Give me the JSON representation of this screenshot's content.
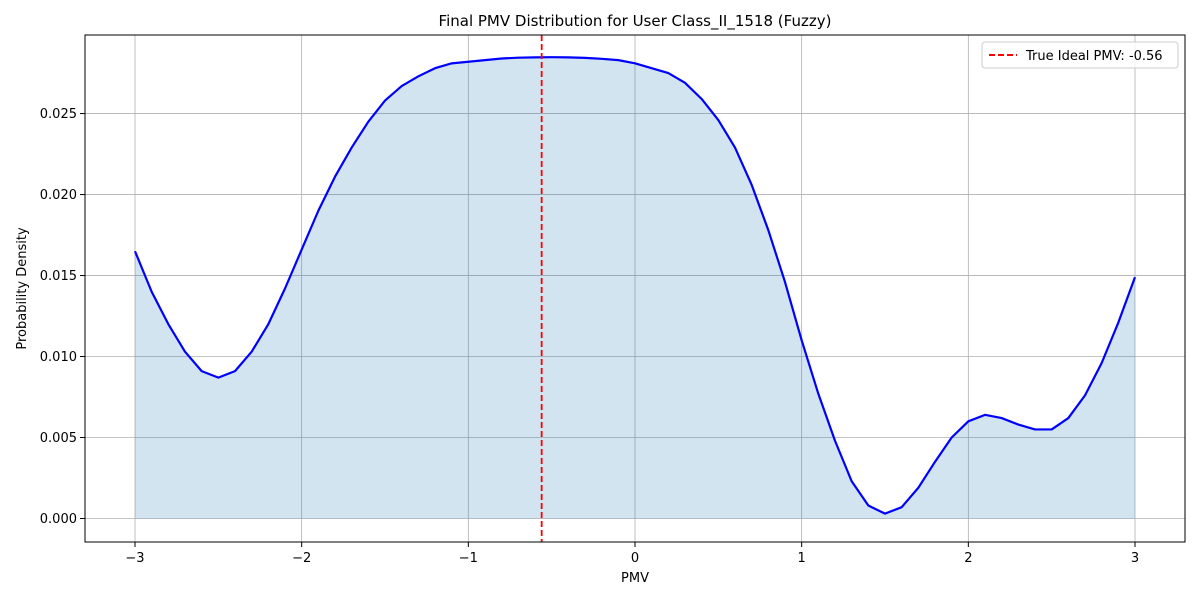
{
  "chart_data": {
    "type": "line",
    "title": "Final PMV Distribution for User Class_II_1518 (Fuzzy)",
    "xlabel": "PMV",
    "ylabel": "Probability Density",
    "xlim": [
      -3.3,
      3.3
    ],
    "ylim": [
      -0.00145,
      0.02985
    ],
    "xticks": [
      -3,
      -2,
      -1,
      0,
      1,
      2,
      3
    ],
    "xtick_labels": [
      "−3",
      "−2",
      "−1",
      "0",
      "1",
      "2",
      "3"
    ],
    "yticks": [
      0.0,
      0.005,
      0.01,
      0.015,
      0.02,
      0.025
    ],
    "ytick_labels": [
      "0.000",
      "0.005",
      "0.010",
      "0.015",
      "0.020",
      "0.025"
    ],
    "grid": true,
    "legend_position": "top-right",
    "series": [
      {
        "name": "",
        "color": "#0000ff",
        "fill_color": "#1f77b4",
        "fill_opacity": 0.2,
        "x": [
          -3.0,
          -2.9,
          -2.8,
          -2.7,
          -2.6,
          -2.5,
          -2.4,
          -2.3,
          -2.2,
          -2.1,
          -2.0,
          -1.9,
          -1.8,
          -1.7,
          -1.6,
          -1.5,
          -1.4,
          -1.3,
          -1.2,
          -1.1,
          -1.0,
          -0.9,
          -0.8,
          -0.7,
          -0.6,
          -0.5,
          -0.4,
          -0.3,
          -0.2,
          -0.1,
          0.0,
          0.1,
          0.2,
          0.3,
          0.4,
          0.5,
          0.6,
          0.7,
          0.8,
          0.9,
          1.0,
          1.1,
          1.2,
          1.3,
          1.4,
          1.5,
          1.6,
          1.7,
          1.8,
          1.9,
          2.0,
          2.1,
          2.2,
          2.3,
          2.4,
          2.5,
          2.6,
          2.7,
          2.8,
          2.9,
          3.0
        ],
        "y": [
          0.0165,
          0.014,
          0.012,
          0.0103,
          0.0091,
          0.0087,
          0.0091,
          0.0103,
          0.012,
          0.0142,
          0.0166,
          0.019,
          0.0211,
          0.0229,
          0.0245,
          0.0258,
          0.0267,
          0.0273,
          0.0278,
          0.0281,
          0.0282,
          0.0283,
          0.0284,
          0.02845,
          0.02847,
          0.02848,
          0.02847,
          0.02844,
          0.02838,
          0.0283,
          0.0281,
          0.0278,
          0.0275,
          0.0269,
          0.0259,
          0.0246,
          0.0229,
          0.0206,
          0.0178,
          0.0146,
          0.011,
          0.0077,
          0.0048,
          0.0023,
          0.0008,
          0.0003,
          0.0007,
          0.0019,
          0.0035,
          0.005,
          0.006,
          0.0064,
          0.0062,
          0.0058,
          0.0055,
          0.0055,
          0.0062,
          0.0076,
          0.0096,
          0.0121,
          0.0149
        ]
      }
    ],
    "vline": {
      "x": -0.56,
      "color": "#ff0000",
      "label": "True Ideal PMV: -0.56"
    }
  }
}
